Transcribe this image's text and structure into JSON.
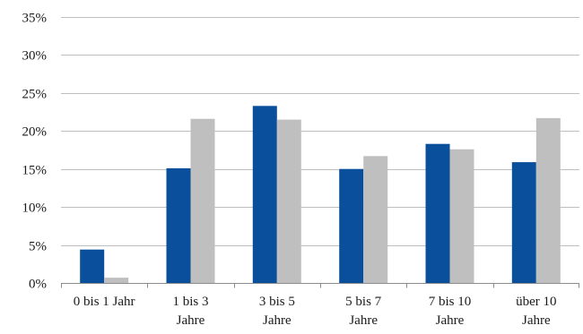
{
  "chart_data": {
    "type": "bar",
    "title": "",
    "xlabel": "",
    "ylabel": "",
    "categories": [
      [
        "0 bis 1 Jahr"
      ],
      [
        "1 bis 3",
        "Jahre"
      ],
      [
        "3 bis 5",
        "Jahre"
      ],
      [
        "5 bis 7",
        "Jahre"
      ],
      [
        "7 bis 10",
        "Jahre"
      ],
      [
        "über 10",
        "Jahre"
      ]
    ],
    "series": [
      {
        "color": "#0a4f9c",
        "values": [
          4.4,
          15.1,
          23.3,
          15.0,
          18.3,
          15.9
        ]
      },
      {
        "color": "#bfbfbf",
        "values": [
          0.7,
          21.6,
          21.5,
          16.7,
          17.6,
          21.7
        ]
      }
    ],
    "ylim": [
      0,
      35
    ],
    "yticks": [
      "0%",
      "5%",
      "10%",
      "15%",
      "20%",
      "25%",
      "30%",
      "35%"
    ],
    "ytick_values": [
      0,
      5,
      10,
      15,
      20,
      25,
      30,
      35
    ],
    "grid": true,
    "legend": "none"
  }
}
